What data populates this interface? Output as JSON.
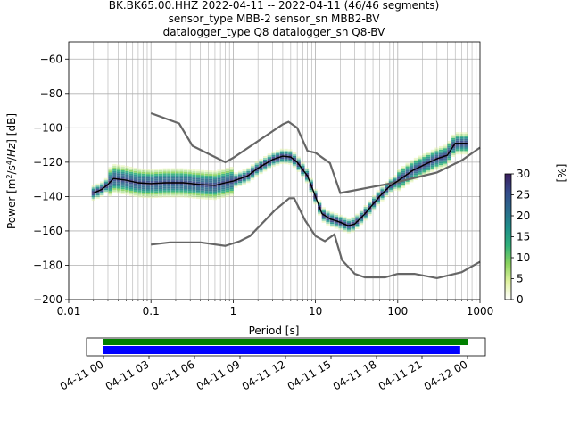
{
  "chart_data": {
    "type": "heatmap",
    "title_lines": [
      "BK.BK65.00.HHZ   2022-04-11 -- 2022-04-11  (46/46 segments)",
      "sensor_type MBB-2 sensor_sn MBB2-BV",
      "datalogger_type Q8 datalogger_sn Q8-BV"
    ],
    "xlabel": "Period [s]",
    "ylabel": "Power [m²/s⁴/Hz] [dB]",
    "x_scale": "log",
    "xlim": [
      0.01,
      1000
    ],
    "ylim": [
      -200,
      -50
    ],
    "x_ticks": [
      0.01,
      0.1,
      1,
      10,
      100,
      1000
    ],
    "x_tick_labels": [
      "0.01",
      "0.1",
      "1",
      "10",
      "100",
      "1000"
    ],
    "y_ticks": [
      -200,
      -180,
      -160,
      -140,
      -120,
      -100,
      -80,
      -60
    ],
    "y_tick_labels": [
      "−200",
      "−180",
      "−160",
      "−140",
      "−120",
      "−100",
      "−80",
      "−60"
    ],
    "grid": true,
    "colorbar": {
      "label": "[%]",
      "ticks": [
        0,
        5,
        10,
        15,
        20,
        25,
        30
      ],
      "tick_labels": [
        "0",
        "5",
        "10",
        "15",
        "20",
        "25",
        "30"
      ],
      "range": [
        0,
        30
      ],
      "colors": [
        "#ffffff",
        "#e0f2a0",
        "#8ad35e",
        "#30b07a",
        "#1f8f8a",
        "#2b6a8c",
        "#344a8a",
        "#3b1f5e"
      ]
    },
    "series": [
      {
        "name": "",
        "color": "#000000",
        "points": [
          [
            0.02,
            -138
          ],
          [
            0.025,
            -136
          ],
          [
            0.03,
            -133
          ],
          [
            0.035,
            -129.5
          ],
          [
            0.05,
            -130.5
          ],
          [
            0.07,
            -132
          ],
          [
            0.1,
            -132.5
          ],
          [
            0.15,
            -132
          ],
          [
            0.25,
            -132
          ],
          [
            0.4,
            -133
          ],
          [
            0.6,
            -133.5
          ],
          [
            0.8,
            -132
          ],
          [
            1,
            -131
          ],
          [
            1.5,
            -128
          ],
          [
            2,
            -123.5
          ],
          [
            3,
            -118.5
          ],
          [
            4,
            -116.5
          ],
          [
            5,
            -117
          ],
          [
            6,
            -120
          ],
          [
            8,
            -128
          ],
          [
            10,
            -140
          ],
          [
            12,
            -150
          ],
          [
            15,
            -153
          ],
          [
            20,
            -155
          ],
          [
            25,
            -157
          ],
          [
            30,
            -156
          ],
          [
            40,
            -150
          ],
          [
            60,
            -140
          ],
          [
            80,
            -134
          ],
          [
            100,
            -131
          ],
          [
            150,
            -125
          ],
          [
            200,
            -122
          ],
          [
            300,
            -118
          ],
          [
            400,
            -116
          ],
          [
            500,
            -109
          ],
          [
            700,
            -109
          ]
        ]
      },
      {
        "name": "",
        "color": "#666666",
        "points": [
          [
            0.1,
            -91.5
          ],
          [
            0.22,
            -97.5
          ],
          [
            0.32,
            -110.5
          ],
          [
            0.8,
            -120
          ],
          [
            1,
            -117.5
          ],
          [
            4,
            -98
          ],
          [
            4.7,
            -96.5
          ],
          [
            6,
            -100
          ],
          [
            8,
            -113.5
          ],
          [
            10,
            -114.5
          ],
          [
            15,
            -120.5
          ],
          [
            20,
            -138
          ],
          [
            70,
            -133
          ],
          [
            100,
            -131.5
          ],
          [
            300,
            -126
          ],
          [
            600,
            -119
          ],
          [
            1000,
            -111.5
          ]
        ]
      },
      {
        "name": "",
        "color": "#666666",
        "points": [
          [
            0.1,
            -168
          ],
          [
            0.17,
            -166.7
          ],
          [
            0.4,
            -166.7
          ],
          [
            0.8,
            -168.7
          ],
          [
            1.2,
            -166
          ],
          [
            1.6,
            -163
          ],
          [
            3.2,
            -148
          ],
          [
            4.8,
            -141
          ],
          [
            5.5,
            -141
          ],
          [
            7.5,
            -154
          ],
          [
            10,
            -163
          ],
          [
            13,
            -166
          ],
          [
            17,
            -162
          ],
          [
            21,
            -177
          ],
          [
            30,
            -185
          ],
          [
            40,
            -187
          ],
          [
            70,
            -187
          ],
          [
            100,
            -185
          ],
          [
            160,
            -185
          ],
          [
            300,
            -187.5
          ],
          [
            600,
            -184
          ],
          [
            1000,
            -178
          ]
        ]
      }
    ]
  },
  "timeline": {
    "tick_labels": [
      "04-11 00",
      "04-11 03",
      "04-11 06",
      "04-11 09",
      "04-11 12",
      "04-11 15",
      "04-11 18",
      "04-11 21",
      "04-12 00"
    ],
    "green_coverage": [
      0.0,
      1.0
    ],
    "blue_coverage": [
      0.0,
      0.98
    ],
    "green_color": "#008000",
    "blue_color": "#0000ff"
  }
}
